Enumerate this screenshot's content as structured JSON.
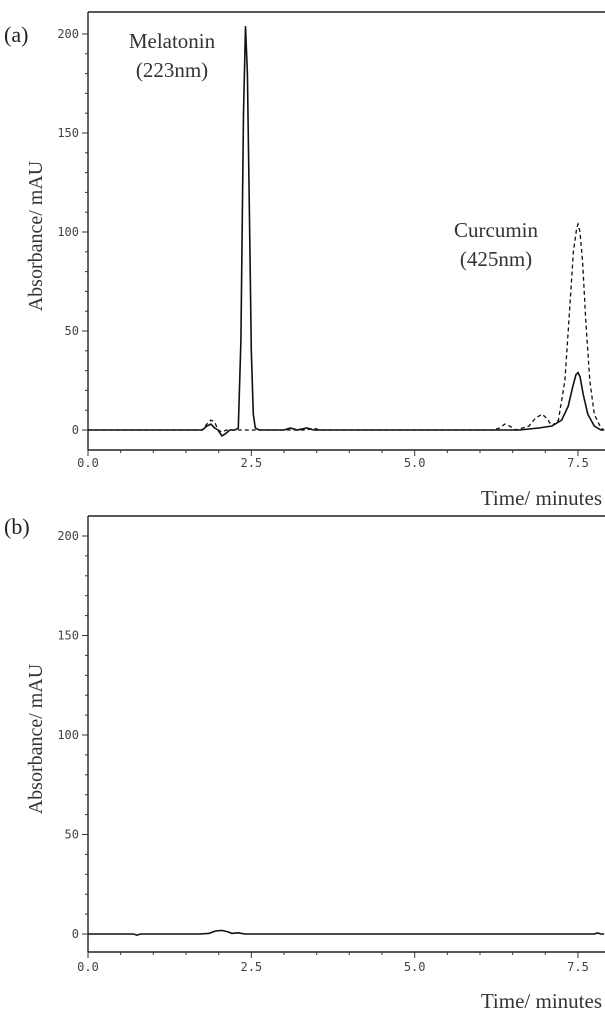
{
  "chart_data": [
    {
      "type": "line",
      "panel_label": "(a)",
      "xlabel": "Time/ minutes",
      "ylabel": "Absorbance/ mAU",
      "xlim": [
        0.0,
        7.9
      ],
      "ylim": [
        -8,
        205
      ],
      "x_ticks": [
        0.0,
        2.5,
        5.0,
        7.5
      ],
      "x_tick_labels": [
        "0.0",
        "2.5",
        "5.0",
        "7.5"
      ],
      "y_ticks": [
        0,
        50,
        100,
        150,
        200
      ],
      "y_tick_labels": [
        "0",
        "50",
        "100",
        "150",
        "200"
      ],
      "annotations": [
        {
          "lines": [
            "Melatonin",
            "(223nm)"
          ],
          "x": 1.6,
          "y": 196
        },
        {
          "lines": [
            "Curcumin",
            "(425nm)"
          ],
          "x": 5.5,
          "y": 101
        }
      ],
      "series": [
        {
          "style": "solid",
          "x": [
            0.0,
            1.75,
            1.82,
            1.88,
            1.94,
            1.99,
            2.05,
            2.1,
            2.17,
            2.25,
            2.3,
            2.34,
            2.38,
            2.41,
            2.44,
            2.47,
            2.5,
            2.53,
            2.56,
            2.62,
            2.8,
            3.0,
            3.1,
            3.2,
            3.35,
            3.45,
            4.2,
            4.8,
            5.5,
            6.2,
            6.6,
            6.9,
            7.1,
            7.25,
            7.35,
            7.42,
            7.47,
            7.5,
            7.53,
            7.58,
            7.65,
            7.75,
            7.85,
            7.9
          ],
          "y": [
            0,
            0,
            2,
            3,
            1,
            0,
            -3,
            -2,
            0,
            0,
            1,
            45,
            160,
            204,
            180,
            110,
            40,
            8,
            1,
            0,
            0,
            0,
            1,
            0,
            1,
            0,
            0,
            0,
            0,
            0,
            0,
            1,
            2,
            5,
            12,
            22,
            28,
            29,
            27,
            18,
            8,
            2,
            0,
            0
          ]
        },
        {
          "style": "dashed",
          "x": [
            0.0,
            1.75,
            1.82,
            1.88,
            1.94,
            1.99,
            2.05,
            2.12,
            2.2,
            2.6,
            3.0,
            3.35,
            3.45,
            3.55,
            4.5,
            5.5,
            6.2,
            6.3,
            6.38,
            6.45,
            6.55,
            6.75,
            6.85,
            6.95,
            7.02,
            7.1,
            7.2,
            7.3,
            7.38,
            7.43,
            7.48,
            7.5,
            7.53,
            7.57,
            7.62,
            7.68,
            7.75,
            7.85,
            7.9
          ],
          "y": [
            0,
            0,
            3,
            5,
            4,
            0,
            -1,
            0,
            0,
            0,
            0,
            0,
            1,
            0,
            0,
            0,
            0,
            1,
            3,
            2,
            0,
            2,
            6,
            8,
            6,
            2,
            5,
            25,
            65,
            90,
            102,
            104,
            100,
            85,
            55,
            25,
            8,
            1,
            0
          ]
        }
      ]
    },
    {
      "type": "line",
      "panel_label": "(b)",
      "xlabel": "Time/ minutes",
      "ylabel": "Absorbance/ mAU",
      "xlim": [
        0.0,
        7.9
      ],
      "ylim": [
        -8,
        205
      ],
      "x_ticks": [
        0.0,
        2.5,
        5.0,
        7.5
      ],
      "x_tick_labels": [
        "0.0",
        "2.5",
        "5.0",
        "7.5"
      ],
      "y_ticks": [
        0,
        50,
        100,
        150,
        200
      ],
      "y_tick_labels": [
        "0",
        "50",
        "100",
        "150",
        "200"
      ],
      "annotations": [],
      "series": [
        {
          "style": "solid",
          "x": [
            0.0,
            0.7,
            0.75,
            0.8,
            1.7,
            1.85,
            1.95,
            2.05,
            2.15,
            2.2,
            2.3,
            2.4,
            5.0,
            7.75,
            7.8,
            7.85,
            7.9
          ],
          "y": [
            0,
            0,
            -0.6,
            0,
            0,
            0.3,
            1.5,
            1.8,
            1,
            0.3,
            0.6,
            0,
            0,
            0,
            0.5,
            0,
            0
          ]
        }
      ]
    }
  ]
}
